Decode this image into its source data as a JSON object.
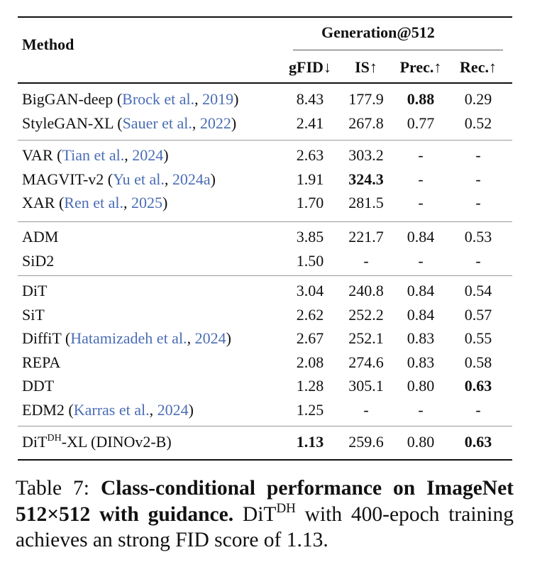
{
  "table": {
    "header": {
      "method": "Method",
      "group": "Generation@512",
      "columns": [
        "gFID↓",
        "IS↑",
        "Prec.↑",
        "Rec.↑"
      ]
    },
    "groups": [
      [
        {
          "method": "BigGAN-deep",
          "cite_name": "Brock et al.",
          "cite_year": "2019",
          "values": [
            "8.43",
            "177.9",
            "0.88",
            "0.29"
          ],
          "bold": [
            2
          ]
        },
        {
          "method": "StyleGAN-XL",
          "cite_name": "Sauer et al.",
          "cite_year": "2022",
          "values": [
            "2.41",
            "267.8",
            "0.77",
            "0.52"
          ],
          "bold": []
        }
      ],
      [
        {
          "method": "VAR",
          "cite_name": "Tian et al.",
          "cite_year": "2024",
          "values": [
            "2.63",
            "303.2",
            "-",
            "-"
          ],
          "bold": []
        },
        {
          "method": "MAGVIT-v2",
          "cite_name": "Yu et al.",
          "cite_year": "2024a",
          "values": [
            "1.91",
            "324.3",
            "-",
            "-"
          ],
          "bold": [
            1
          ]
        },
        {
          "method": "XAR",
          "cite_name": "Ren et al.",
          "cite_year": "2025",
          "values": [
            "1.70",
            "281.5",
            "-",
            "-"
          ],
          "bold": []
        }
      ],
      [
        {
          "method": "ADM",
          "values": [
            "3.85",
            "221.7",
            "0.84",
            "0.53"
          ],
          "bold": []
        },
        {
          "method": "SiD2",
          "values": [
            "1.50",
            "-",
            "-",
            "-"
          ],
          "bold": []
        }
      ],
      [
        {
          "method": "DiT",
          "values": [
            "3.04",
            "240.8",
            "0.84",
            "0.54"
          ],
          "bold": []
        },
        {
          "method": "SiT",
          "values": [
            "2.62",
            "252.2",
            "0.84",
            "0.57"
          ],
          "bold": []
        },
        {
          "method": "DiffiT",
          "cite_name": "Hatamizadeh et al.",
          "cite_year": "2024",
          "values": [
            "2.67",
            "252.1",
            "0.83",
            "0.55"
          ],
          "bold": []
        },
        {
          "method": "REPA",
          "values": [
            "2.08",
            "274.6",
            "0.83",
            "0.58"
          ],
          "bold": []
        },
        {
          "method": "DDT",
          "values": [
            "1.28",
            "305.1",
            "0.80",
            "0.63"
          ],
          "bold": [
            3
          ]
        },
        {
          "method": "EDM2",
          "cite_name": "Karras et al.",
          "cite_year": "2024",
          "values": [
            "1.25",
            "-",
            "-",
            "-"
          ],
          "bold": []
        }
      ],
      [
        {
          "method": "DiT",
          "sup": "DH",
          "method_suffix": "-XL (DINOv2-B)",
          "values": [
            "1.13",
            "259.6",
            "0.80",
            "0.63"
          ],
          "bold": [
            0,
            3
          ]
        }
      ]
    ]
  },
  "caption": {
    "label": "Table 7:",
    "title": "Class-conditional performance on ImageNet 512×512 with guidance.",
    "body_model": "DiT",
    "body_sup": "DH",
    "body_rest": " with 400-epoch training achieves an strong FID score of 1.13."
  },
  "colors": {
    "citation": "#4a6db5",
    "rule": "#111111"
  }
}
